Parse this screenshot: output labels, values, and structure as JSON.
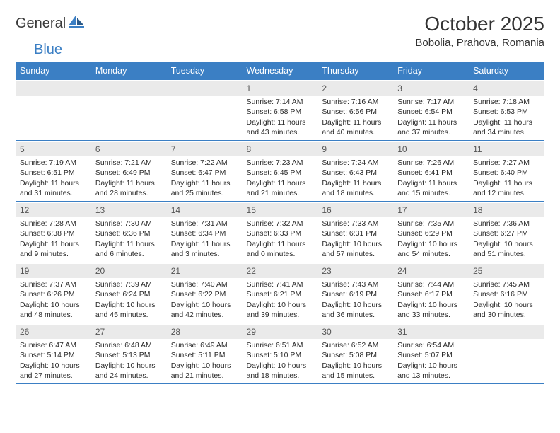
{
  "logo": {
    "general": "General",
    "blue": "Blue"
  },
  "title": "October 2025",
  "location": "Bobolia, Prahova, Romania",
  "colors": {
    "header_bg": "#3b7fc4",
    "header_text": "#ffffff",
    "border": "#3b7fc4",
    "daynum_bg": "#eaeaea",
    "daynum_text": "#555555",
    "body_text": "#2a2a2a",
    "page_bg": "#ffffff"
  },
  "day_headers": [
    "Sunday",
    "Monday",
    "Tuesday",
    "Wednesday",
    "Thursday",
    "Friday",
    "Saturday"
  ],
  "weeks": [
    [
      null,
      null,
      null,
      {
        "n": "1",
        "sr": "7:14 AM",
        "ss": "6:58 PM",
        "dh": "11",
        "dm": "43"
      },
      {
        "n": "2",
        "sr": "7:16 AM",
        "ss": "6:56 PM",
        "dh": "11",
        "dm": "40"
      },
      {
        "n": "3",
        "sr": "7:17 AM",
        "ss": "6:54 PM",
        "dh": "11",
        "dm": "37"
      },
      {
        "n": "4",
        "sr": "7:18 AM",
        "ss": "6:53 PM",
        "dh": "11",
        "dm": "34"
      }
    ],
    [
      {
        "n": "5",
        "sr": "7:19 AM",
        "ss": "6:51 PM",
        "dh": "11",
        "dm": "31"
      },
      {
        "n": "6",
        "sr": "7:21 AM",
        "ss": "6:49 PM",
        "dh": "11",
        "dm": "28"
      },
      {
        "n": "7",
        "sr": "7:22 AM",
        "ss": "6:47 PM",
        "dh": "11",
        "dm": "25"
      },
      {
        "n": "8",
        "sr": "7:23 AM",
        "ss": "6:45 PM",
        "dh": "11",
        "dm": "21"
      },
      {
        "n": "9",
        "sr": "7:24 AM",
        "ss": "6:43 PM",
        "dh": "11",
        "dm": "18"
      },
      {
        "n": "10",
        "sr": "7:26 AM",
        "ss": "6:41 PM",
        "dh": "11",
        "dm": "15"
      },
      {
        "n": "11",
        "sr": "7:27 AM",
        "ss": "6:40 PM",
        "dh": "11",
        "dm": "12"
      }
    ],
    [
      {
        "n": "12",
        "sr": "7:28 AM",
        "ss": "6:38 PM",
        "dh": "11",
        "dm": "9"
      },
      {
        "n": "13",
        "sr": "7:30 AM",
        "ss": "6:36 PM",
        "dh": "11",
        "dm": "6"
      },
      {
        "n": "14",
        "sr": "7:31 AM",
        "ss": "6:34 PM",
        "dh": "11",
        "dm": "3"
      },
      {
        "n": "15",
        "sr": "7:32 AM",
        "ss": "6:33 PM",
        "dh": "11",
        "dm": "0"
      },
      {
        "n": "16",
        "sr": "7:33 AM",
        "ss": "6:31 PM",
        "dh": "10",
        "dm": "57"
      },
      {
        "n": "17",
        "sr": "7:35 AM",
        "ss": "6:29 PM",
        "dh": "10",
        "dm": "54"
      },
      {
        "n": "18",
        "sr": "7:36 AM",
        "ss": "6:27 PM",
        "dh": "10",
        "dm": "51"
      }
    ],
    [
      {
        "n": "19",
        "sr": "7:37 AM",
        "ss": "6:26 PM",
        "dh": "10",
        "dm": "48"
      },
      {
        "n": "20",
        "sr": "7:39 AM",
        "ss": "6:24 PM",
        "dh": "10",
        "dm": "45"
      },
      {
        "n": "21",
        "sr": "7:40 AM",
        "ss": "6:22 PM",
        "dh": "10",
        "dm": "42"
      },
      {
        "n": "22",
        "sr": "7:41 AM",
        "ss": "6:21 PM",
        "dh": "10",
        "dm": "39"
      },
      {
        "n": "23",
        "sr": "7:43 AM",
        "ss": "6:19 PM",
        "dh": "10",
        "dm": "36"
      },
      {
        "n": "24",
        "sr": "7:44 AM",
        "ss": "6:17 PM",
        "dh": "10",
        "dm": "33"
      },
      {
        "n": "25",
        "sr": "7:45 AM",
        "ss": "6:16 PM",
        "dh": "10",
        "dm": "30"
      }
    ],
    [
      {
        "n": "26",
        "sr": "6:47 AM",
        "ss": "5:14 PM",
        "dh": "10",
        "dm": "27"
      },
      {
        "n": "27",
        "sr": "6:48 AM",
        "ss": "5:13 PM",
        "dh": "10",
        "dm": "24"
      },
      {
        "n": "28",
        "sr": "6:49 AM",
        "ss": "5:11 PM",
        "dh": "10",
        "dm": "21"
      },
      {
        "n": "29",
        "sr": "6:51 AM",
        "ss": "5:10 PM",
        "dh": "10",
        "dm": "18"
      },
      {
        "n": "30",
        "sr": "6:52 AM",
        "ss": "5:08 PM",
        "dh": "10",
        "dm": "15"
      },
      {
        "n": "31",
        "sr": "6:54 AM",
        "ss": "5:07 PM",
        "dh": "10",
        "dm": "13"
      },
      null
    ]
  ],
  "labels": {
    "sunrise": "Sunrise:",
    "sunset": "Sunset:",
    "daylight_prefix": "Daylight:",
    "hours_word": "hours",
    "and_word": "and",
    "minutes_word": "minutes."
  }
}
